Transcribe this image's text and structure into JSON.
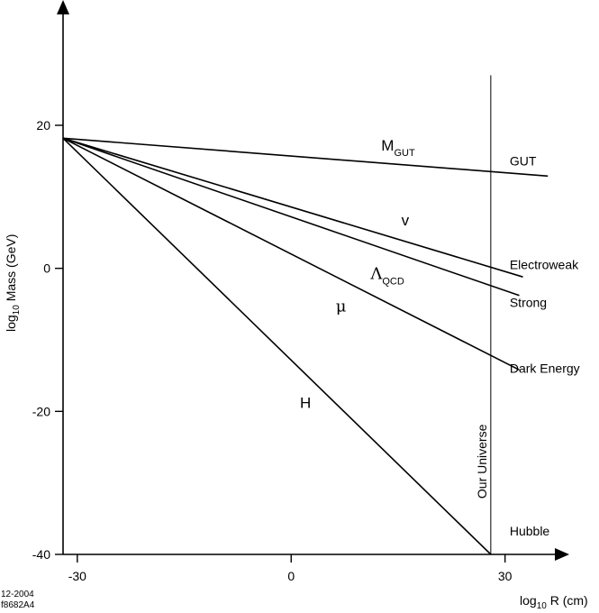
{
  "chart_data": {
    "type": "line",
    "title": "",
    "xlabel": {
      "prefix": "log",
      "sub": "10",
      "suffix": " R (cm)"
    },
    "ylabel": {
      "prefix": "log",
      "sub": "10",
      "suffix": " Mass (GeV)"
    },
    "xlim": [
      -32,
      38
    ],
    "ylim": [
      -40,
      35
    ],
    "x_ticks": [
      {
        "value": -30,
        "label": "-30"
      },
      {
        "value": 0,
        "label": "0"
      },
      {
        "value": 30,
        "label": "30"
      }
    ],
    "y_ticks": [
      {
        "value": 20,
        "label": "20"
      },
      {
        "value": 0,
        "label": "0"
      },
      {
        "value": -20,
        "label": "-20"
      },
      {
        "value": -40,
        "label": "-40"
      }
    ],
    "grid": false,
    "series": [
      {
        "name": "GUT",
        "x": [
          -32,
          36
        ],
        "y": [
          18.2,
          12.9
        ]
      },
      {
        "name": "Electroweak",
        "x": [
          -32,
          32.5
        ],
        "y": [
          18.2,
          -1.2
        ]
      },
      {
        "name": "Strong",
        "x": [
          -32,
          32
        ],
        "y": [
          18.2,
          -3.8
        ]
      },
      {
        "name": "Dark Energy",
        "x": [
          -32,
          32
        ],
        "y": [
          18.2,
          -14.2
        ]
      },
      {
        "name": "Hubble",
        "x": [
          -32,
          28
        ],
        "y": [
          18.2,
          -40
        ]
      }
    ],
    "line_labels": [
      {
        "text": "M",
        "sub": "GUT",
        "x": 15,
        "y": 16.5
      },
      {
        "text": "v",
        "sub": "",
        "x": 16,
        "y": 6
      },
      {
        "text": "Λ",
        "sub": "QCD",
        "x": 13.5,
        "y": -1.5
      },
      {
        "text": "μ",
        "sub": "",
        "x": 7,
        "y": -6
      },
      {
        "text": "H",
        "sub": "",
        "x": 2,
        "y": -19.5
      }
    ],
    "right_labels": [
      {
        "text": "GUT",
        "y": 15
      },
      {
        "text": "Electroweak",
        "y": 0.5
      },
      {
        "text": "Strong",
        "y": -4.8
      },
      {
        "text": "Dark Energy",
        "y": -14
      },
      {
        "text": "Hubble",
        "y": -36.7
      }
    ],
    "vertical_marker": {
      "x": 28,
      "y_top": 27,
      "label": "Our Universe"
    },
    "footnote": [
      "12-2004",
      "f8682A4"
    ]
  }
}
